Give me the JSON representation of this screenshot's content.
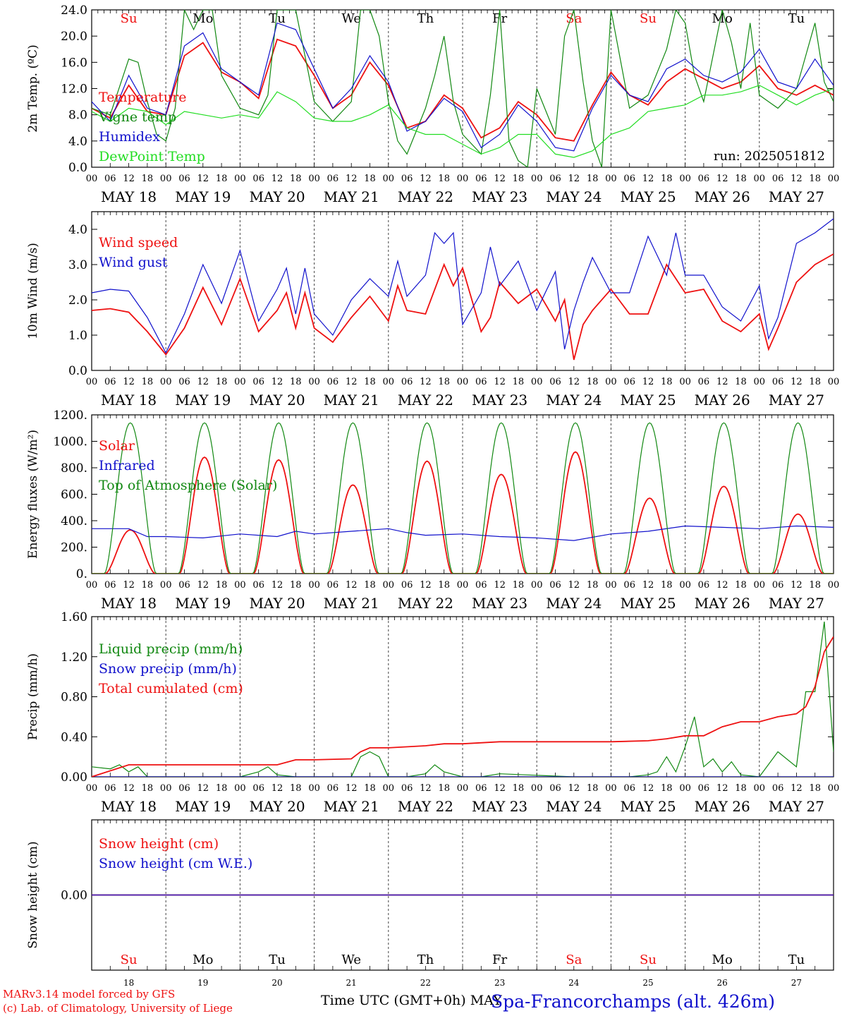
{
  "footer": {
    "model": "MARv3.14 model forced by GFS",
    "credit": "(c) Lab. of Climatology, University of Liege",
    "xlabel": "Time UTC (GMT+0h) MAY",
    "station": "Spa-Francorchamps (alt. 426m)"
  },
  "colors": {
    "red": "#ee1111",
    "green": "#118811",
    "blue": "#1111cc",
    "lightgreen": "#22dd22"
  },
  "chart_data": [
    {
      "type": "line",
      "ylabel": "2m Temp. (ºC)",
      "ylim": [
        0,
        24
      ],
      "yticks": [
        "0.0",
        "4.0",
        "8.0",
        "12.0",
        "16.0",
        "20.0",
        "24.0"
      ],
      "annotation": "run: 2025051812",
      "weekdays": [
        "Su",
        "Mo",
        "Tu",
        "We",
        "Th",
        "Fr",
        "Sa",
        "Su",
        "Mo",
        "Tu"
      ],
      "weekday_colors": [
        "red",
        "black",
        "black",
        "black",
        "black",
        "black",
        "red",
        "red",
        "black",
        "black"
      ],
      "date_labels": [
        "MAY 18",
        "MAY 19",
        "MAY 20",
        "MAY 21",
        "MAY 22",
        "MAY 23",
        "MAY 24",
        "MAY 25",
        "MAY 26",
        "MAY 27"
      ],
      "hour_labels": [
        "00",
        "06",
        "12",
        "18"
      ],
      "series": [
        {
          "name": "Temperature",
          "color": "red",
          "x": [
            0,
            6,
            12,
            18,
            24,
            30,
            36,
            42,
            48,
            54,
            60,
            66,
            72,
            78,
            84,
            90,
            96,
            102,
            108,
            114,
            120,
            126,
            132,
            138,
            144,
            150,
            156,
            162,
            168,
            174,
            180,
            186,
            192,
            198,
            204,
            210,
            216,
            222,
            228,
            234,
            240
          ],
          "y": [
            9,
            7.5,
            12.5,
            8.5,
            8,
            17,
            19,
            14.5,
            13,
            10.5,
            19.5,
            18.5,
            14,
            9,
            11,
            16,
            12.5,
            6,
            7,
            11,
            9,
            4.5,
            6,
            10,
            8,
            4.5,
            4,
            9.5,
            14.5,
            11,
            9.5,
            13,
            15,
            13.5,
            12,
            13,
            15.5,
            12,
            11,
            12.5,
            11
          ]
        },
        {
          "name": "Vigne temp",
          "color": "green",
          "x": [
            0,
            6,
            12,
            15,
            18,
            21,
            24,
            27,
            30,
            33,
            36,
            39,
            42,
            48,
            54,
            57,
            60,
            63,
            66,
            72,
            78,
            84,
            87,
            90,
            93,
            96,
            99,
            102,
            108,
            111,
            114,
            117,
            120,
            126,
            129,
            132,
            135,
            138,
            141,
            144,
            150,
            153,
            156,
            159,
            162,
            165,
            168,
            174,
            180,
            186,
            189,
            192,
            195,
            198,
            204,
            207,
            210,
            213,
            216,
            219,
            222,
            228,
            234,
            237,
            240
          ],
          "y": [
            9,
            8,
            16.5,
            16,
            10,
            5,
            4,
            9,
            24,
            21,
            24,
            24,
            14,
            9,
            8,
            11,
            24,
            24,
            24,
            10,
            7,
            10,
            24,
            24,
            20,
            10,
            4,
            2,
            9,
            14,
            20,
            10,
            5,
            2,
            11,
            24,
            4,
            1,
            0,
            12,
            5,
            20,
            24,
            13,
            4,
            0,
            24,
            9,
            11,
            18,
            24,
            22,
            14,
            10,
            24,
            19,
            12,
            22,
            11,
            10,
            9,
            12,
            22,
            13,
            10
          ]
        },
        {
          "name": "Humidex",
          "color": "blue",
          "x": [
            0,
            6,
            12,
            18,
            24,
            30,
            36,
            42,
            48,
            54,
            60,
            66,
            72,
            78,
            84,
            90,
            96,
            102,
            108,
            114,
            120,
            126,
            132,
            138,
            144,
            150,
            156,
            162,
            168,
            174,
            180,
            186,
            192,
            198,
            204,
            210,
            216,
            222,
            228,
            234,
            240
          ],
          "y": [
            10,
            7,
            14,
            9,
            8,
            18.5,
            20.5,
            15,
            13,
            11,
            22,
            21,
            15,
            9,
            12,
            17,
            13,
            5.5,
            7,
            10.5,
            8.5,
            3,
            5,
            9.5,
            7,
            3,
            2.5,
            9,
            14,
            11,
            10,
            15,
            16.5,
            14,
            13,
            14.5,
            18,
            13,
            12,
            16.5,
            12.5
          ]
        },
        {
          "name": "DewPoint Temp",
          "color": "lightgreen",
          "x": [
            0,
            6,
            12,
            18,
            24,
            30,
            36,
            42,
            48,
            54,
            60,
            66,
            72,
            78,
            84,
            90,
            96,
            102,
            108,
            114,
            120,
            126,
            132,
            138,
            144,
            150,
            156,
            162,
            168,
            174,
            180,
            186,
            192,
            198,
            204,
            210,
            216,
            222,
            228,
            234,
            240
          ],
          "y": [
            8.5,
            7,
            9,
            8.5,
            6.5,
            8.5,
            8,
            7.5,
            8,
            7.5,
            11.5,
            10,
            7.5,
            7,
            7,
            8,
            9.5,
            6,
            5,
            5,
            3.5,
            2,
            3,
            5,
            5,
            2,
            1.5,
            2.5,
            5,
            6,
            8.5,
            9,
            9.5,
            11,
            11,
            11.5,
            12.5,
            11,
            9.5,
            11,
            12
          ]
        }
      ]
    },
    {
      "type": "line",
      "ylabel": "10m Wind (m/s)",
      "ylim": [
        0,
        4.5
      ],
      "yticks": [
        "0.0",
        "1.0",
        "2.0",
        "3.0",
        "4.0"
      ],
      "date_labels": [
        "MAY 18",
        "MAY 19",
        "MAY 20",
        "MAY 21",
        "MAY 22",
        "MAY 23",
        "MAY 24",
        "MAY 25",
        "MAY 26",
        "MAY 27"
      ],
      "hour_labels": [
        "00",
        "06",
        "12",
        "18"
      ],
      "series": [
        {
          "name": "Wind speed",
          "color": "red",
          "x": [
            0,
            6,
            12,
            18,
            24,
            30,
            36,
            42,
            48,
            54,
            60,
            63,
            66,
            69,
            72,
            78,
            84,
            90,
            96,
            99,
            102,
            108,
            114,
            117,
            120,
            126,
            129,
            132,
            138,
            144,
            150,
            153,
            156,
            159,
            162,
            168,
            174,
            180,
            186,
            192,
            198,
            204,
            210,
            216,
            219,
            222,
            228,
            234,
            240
          ],
          "y": [
            1.7,
            1.75,
            1.65,
            1.1,
            0.45,
            1.2,
            2.35,
            1.3,
            2.6,
            1.1,
            1.7,
            2.2,
            1.2,
            2.2,
            1.2,
            0.8,
            1.5,
            2.1,
            1.4,
            2.4,
            1.7,
            1.6,
            3.0,
            2.4,
            2.9,
            1.1,
            1.5,
            2.5,
            1.9,
            2.3,
            1.4,
            2.0,
            0.3,
            1.3,
            1.7,
            2.3,
            1.6,
            1.6,
            3.0,
            2.2,
            2.3,
            1.4,
            1.1,
            1.6,
            0.6,
            1.2,
            2.5,
            3.0,
            3.3
          ]
        },
        {
          "name": "Wind gust",
          "color": "blue",
          "x": [
            0,
            6,
            12,
            18,
            24,
            30,
            36,
            42,
            48,
            54,
            60,
            63,
            66,
            69,
            72,
            78,
            84,
            90,
            96,
            99,
            102,
            108,
            111,
            114,
            117,
            120,
            126,
            129,
            132,
            138,
            144,
            150,
            153,
            156,
            159,
            162,
            168,
            174,
            180,
            186,
            189,
            192,
            198,
            204,
            210,
            216,
            219,
            222,
            228,
            234,
            240
          ],
          "y": [
            2.2,
            2.3,
            2.25,
            1.5,
            0.5,
            1.6,
            3.0,
            1.9,
            3.4,
            1.4,
            2.3,
            2.9,
            1.6,
            2.9,
            1.6,
            1.0,
            2.0,
            2.6,
            2.1,
            3.1,
            2.1,
            2.7,
            3.9,
            3.6,
            3.9,
            1.3,
            2.2,
            3.5,
            2.4,
            3.1,
            1.7,
            2.8,
            0.6,
            1.7,
            2.5,
            3.2,
            2.2,
            2.2,
            3.8,
            2.7,
            3.9,
            2.7,
            2.7,
            1.8,
            1.4,
            2.4,
            0.9,
            1.5,
            3.6,
            3.9,
            4.3
          ]
        }
      ]
    },
    {
      "type": "line",
      "ylabel": "Energy fluxes (W/m²)",
      "ylim": [
        0,
        1200
      ],
      "yticks": [
        "0.",
        "200.",
        "400.",
        "600.",
        "800.",
        "1000.",
        "1200."
      ],
      "date_labels": [
        "MAY 18",
        "MAY 19",
        "MAY 20",
        "MAY 21",
        "MAY 22",
        "MAY 23",
        "MAY 24",
        "MAY 25",
        "MAY 26",
        "MAY 27"
      ],
      "hour_labels": [
        "00",
        "06",
        "12",
        "18"
      ],
      "series": [
        {
          "name": "Solar",
          "color": "red",
          "daily_peaks": [
            330,
            880,
            860,
            670,
            850,
            750,
            920,
            570,
            660,
            450
          ],
          "sunrise_hour": 4.5,
          "sunset_hour": 20.5
        },
        {
          "name": "Infrared",
          "color": "blue",
          "x": [
            0,
            12,
            18,
            24,
            36,
            48,
            60,
            66,
            72,
            84,
            96,
            102,
            108,
            120,
            132,
            144,
            156,
            168,
            180,
            192,
            204,
            216,
            228,
            240
          ],
          "y": [
            340,
            340,
            280,
            280,
            270,
            300,
            280,
            320,
            300,
            320,
            340,
            310,
            290,
            300,
            280,
            270,
            250,
            300,
            320,
            360,
            350,
            340,
            360,
            350
          ]
        },
        {
          "name": "Top of Atmosphere (Solar)",
          "color": "green",
          "daily_peak": 1140,
          "sunrise_hour": 4.2,
          "sunset_hour": 20.8
        }
      ]
    },
    {
      "type": "line",
      "ylabel": "Precip (mm/h)",
      "ylim": [
        0,
        1.6
      ],
      "yticks": [
        "0.00",
        "0.40",
        "0.80",
        "1.20",
        "1.60"
      ],
      "date_labels": [
        "MAY 18",
        "MAY 19",
        "MAY 20",
        "MAY 21",
        "MAY 22",
        "MAY 23",
        "MAY 24",
        "MAY 25",
        "MAY 26",
        "MAY 27"
      ],
      "hour_labels": [
        "00",
        "06",
        "12",
        "18"
      ],
      "series": [
        {
          "name": "Liquid precip (mm/h)",
          "color": "green",
          "x": [
            0,
            6,
            9,
            12,
            15,
            18,
            24,
            48,
            54,
            57,
            60,
            66,
            72,
            84,
            87,
            90,
            93,
            96,
            102,
            108,
            111,
            114,
            120,
            126,
            132,
            156,
            168,
            174,
            180,
            183,
            186,
            189,
            192,
            195,
            198,
            201,
            204,
            207,
            210,
            216,
            222,
            228,
            231,
            234,
            237,
            240
          ],
          "y": [
            0.1,
            0.08,
            0.12,
            0.05,
            0.1,
            0,
            0,
            0,
            0.05,
            0.1,
            0.02,
            0,
            0,
            0,
            0.2,
            0.25,
            0.2,
            0,
            0,
            0.03,
            0.12,
            0.05,
            0,
            0,
            0.03,
            0,
            0,
            0,
            0.02,
            0.05,
            0.2,
            0.05,
            0.3,
            0.6,
            0.1,
            0.18,
            0.05,
            0.15,
            0.02,
            0,
            0.25,
            0.1,
            0.85,
            0.85,
            1.55,
            0.25
          ]
        },
        {
          "name": "Snow precip (mm/h)",
          "color": "blue",
          "x": [
            0,
            240
          ],
          "y": [
            0,
            0
          ]
        },
        {
          "name": "Total cumulated (cm)",
          "color": "red",
          "x": [
            0,
            12,
            48,
            60,
            66,
            72,
            84,
            87,
            90,
            96,
            108,
            114,
            120,
            132,
            144,
            168,
            180,
            186,
            192,
            198,
            204,
            210,
            216,
            222,
            228,
            231,
            234,
            237,
            240
          ],
          "y": [
            0,
            0.12,
            0.12,
            0.12,
            0.17,
            0.17,
            0.18,
            0.25,
            0.29,
            0.29,
            0.31,
            0.33,
            0.33,
            0.35,
            0.35,
            0.35,
            0.36,
            0.38,
            0.41,
            0.41,
            0.5,
            0.55,
            0.55,
            0.6,
            0.63,
            0.7,
            0.9,
            1.25,
            1.4
          ]
        }
      ]
    },
    {
      "type": "line",
      "ylabel": "Snow height (cm)",
      "ylim": [
        -1,
        1
      ],
      "yticks": [
        "0.00"
      ],
      "weekdays": [
        "Su",
        "Mo",
        "Tu",
        "We",
        "Th",
        "Fr",
        "Sa",
        "Su",
        "Mo",
        "Tu"
      ],
      "weekday_colors": [
        "red",
        "black",
        "black",
        "black",
        "black",
        "black",
        "red",
        "red",
        "black",
        "black"
      ],
      "day_numbers": [
        "18",
        "19",
        "20",
        "21",
        "22",
        "23",
        "24",
        "25",
        "26",
        "27"
      ],
      "series": [
        {
          "name": "Snow height (cm)",
          "color": "red",
          "x": [
            0,
            240
          ],
          "y": [
            0,
            0
          ]
        },
        {
          "name": "Snow height (cm W.E.)",
          "color": "blue",
          "x": [
            0,
            240
          ],
          "y": [
            0,
            0
          ]
        }
      ]
    }
  ]
}
